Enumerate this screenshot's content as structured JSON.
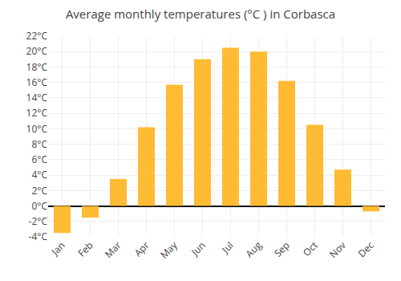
{
  "chart_data": {
    "type": "bar",
    "title": "Average monthly temperatures (°C ) in Corbasca",
    "categories": [
      "Jan",
      "Feb",
      "Mar",
      "Apr",
      "May",
      "Jun",
      "Jul",
      "Aug",
      "Sep",
      "Oct",
      "Nov",
      "Dec"
    ],
    "values": [
      -3.5,
      -1.5,
      3.5,
      10.2,
      15.7,
      19.0,
      20.5,
      20.0,
      16.2,
      10.5,
      4.7,
      -0.7
    ],
    "color": "#FFBB33",
    "ylim": [
      -4,
      22
    ],
    "yticks": [
      {
        "value": -4,
        "label": "-4°C"
      },
      {
        "value": -2,
        "label": "-2°C"
      },
      {
        "value": 0,
        "label": "0°C"
      },
      {
        "value": 2,
        "label": "2°C"
      },
      {
        "value": 4,
        "label": "4°C"
      },
      {
        "value": 6,
        "label": "6°C"
      },
      {
        "value": 8,
        "label": "8°C"
      },
      {
        "value": 10,
        "label": "10°C"
      },
      {
        "value": 12,
        "label": "12°C"
      },
      {
        "value": 14,
        "label": "14°C"
      },
      {
        "value": 16,
        "label": "16°C"
      },
      {
        "value": 18,
        "label": "18°C"
      },
      {
        "value": 20,
        "label": "20°C"
      },
      {
        "value": 22,
        "label": "22°C"
      }
    ],
    "grid": true
  }
}
